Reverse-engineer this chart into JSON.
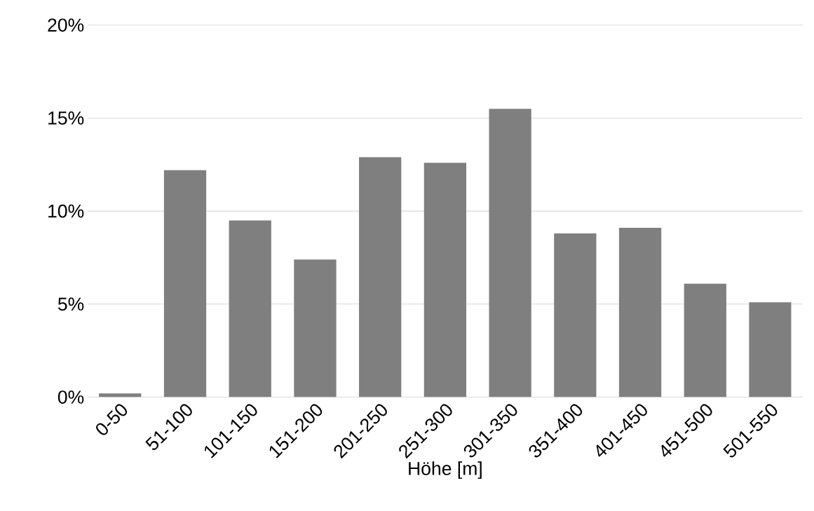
{
  "chart_data": {
    "type": "bar",
    "xlabel": "Höhe [m]",
    "categories": [
      "0-50",
      "51-100",
      "101-150",
      "151-200",
      "201-250",
      "251-300",
      "301-350",
      "351-400",
      "401-450",
      "451-500",
      "501-550"
    ],
    "values": [
      0.2,
      12.2,
      9.5,
      7.4,
      12.9,
      12.6,
      15.5,
      8.8,
      9.1,
      6.1,
      5.1
    ],
    "color": "#7f7f7f",
    "ylim": [
      0,
      20
    ],
    "yticks": [
      {
        "value": 0,
        "label": "0%"
      },
      {
        "value": 5,
        "label": "5%"
      },
      {
        "value": 10,
        "label": "10%"
      },
      {
        "value": 15,
        "label": "15%"
      },
      {
        "value": 20,
        "label": "20%"
      }
    ],
    "grid": "y"
  }
}
